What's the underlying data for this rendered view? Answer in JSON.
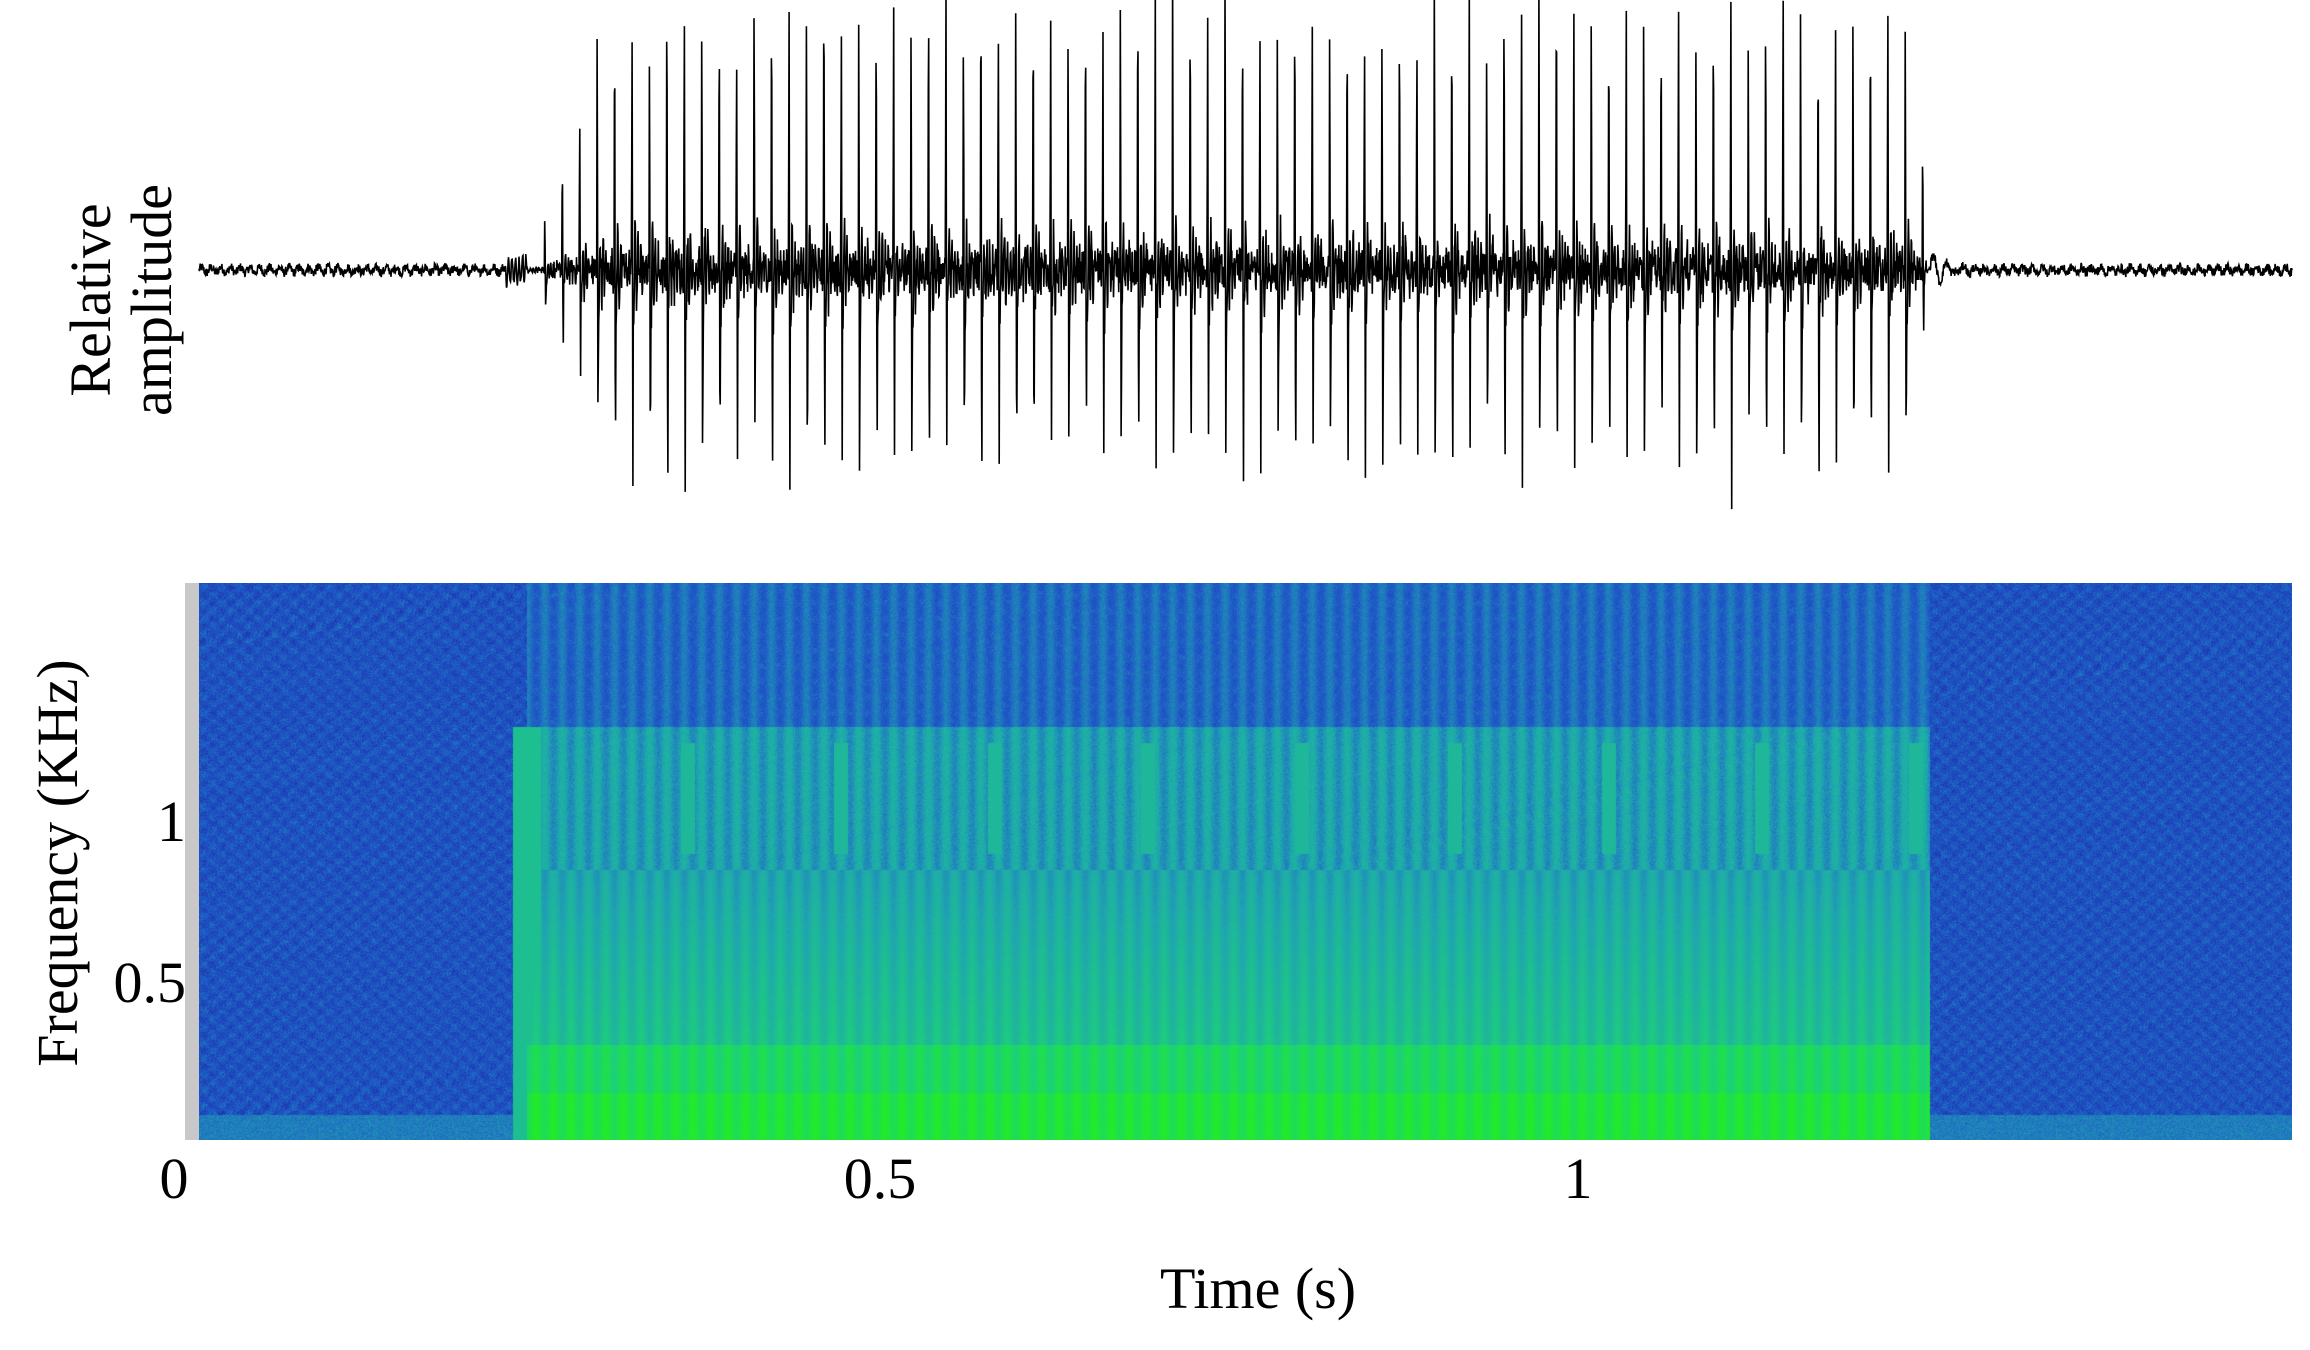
{
  "chart_data": [
    {
      "type": "line",
      "panel": "waveform",
      "ylabel": "Relative\namplitude",
      "ylabel_lines": [
        "Relative",
        "amplitude"
      ],
      "x_unit": "s",
      "xlim": [
        0,
        1.5
      ],
      "signal": {
        "onset_s": 0.235,
        "offset_s": 1.24,
        "pulse_period_s": 0.0125,
        "baseline_level": 0.02,
        "peak_level": 1.0
      },
      "colors": {
        "trace": "#000000"
      }
    },
    {
      "type": "heatmap",
      "panel": "spectrogram",
      "xlabel": "Time (s)",
      "ylabel": "Frequency (KHz)",
      "xlim": [
        0,
        1.5
      ],
      "ylim": [
        0,
        1.75
      ],
      "x_ticks": [
        {
          "value": 0,
          "label": "0"
        },
        {
          "value": 0.5,
          "label": "0.5"
        },
        {
          "value": 1,
          "label": "1"
        }
      ],
      "y_ticks": [
        {
          "value": 0.5,
          "label": "0.5"
        },
        {
          "value": 1,
          "label": "1"
        }
      ],
      "energy_bands": [
        {
          "from_s": 0.235,
          "to_s": 1.24,
          "freq_low_khz": 0.0,
          "freq_high_khz": 0.85,
          "intensity": "high"
        },
        {
          "from_s": 0.235,
          "to_s": 1.24,
          "freq_low_khz": 0.05,
          "freq_high_khz": 0.15,
          "intensity": "peak"
        }
      ],
      "colormap": [
        "#1a2aa0",
        "#1f56c8",
        "#1fa6b0",
        "#1cd07a",
        "#22ee22"
      ],
      "colors": {
        "background": "#1a2aa0",
        "strip": "#c8c8c8"
      }
    }
  ]
}
